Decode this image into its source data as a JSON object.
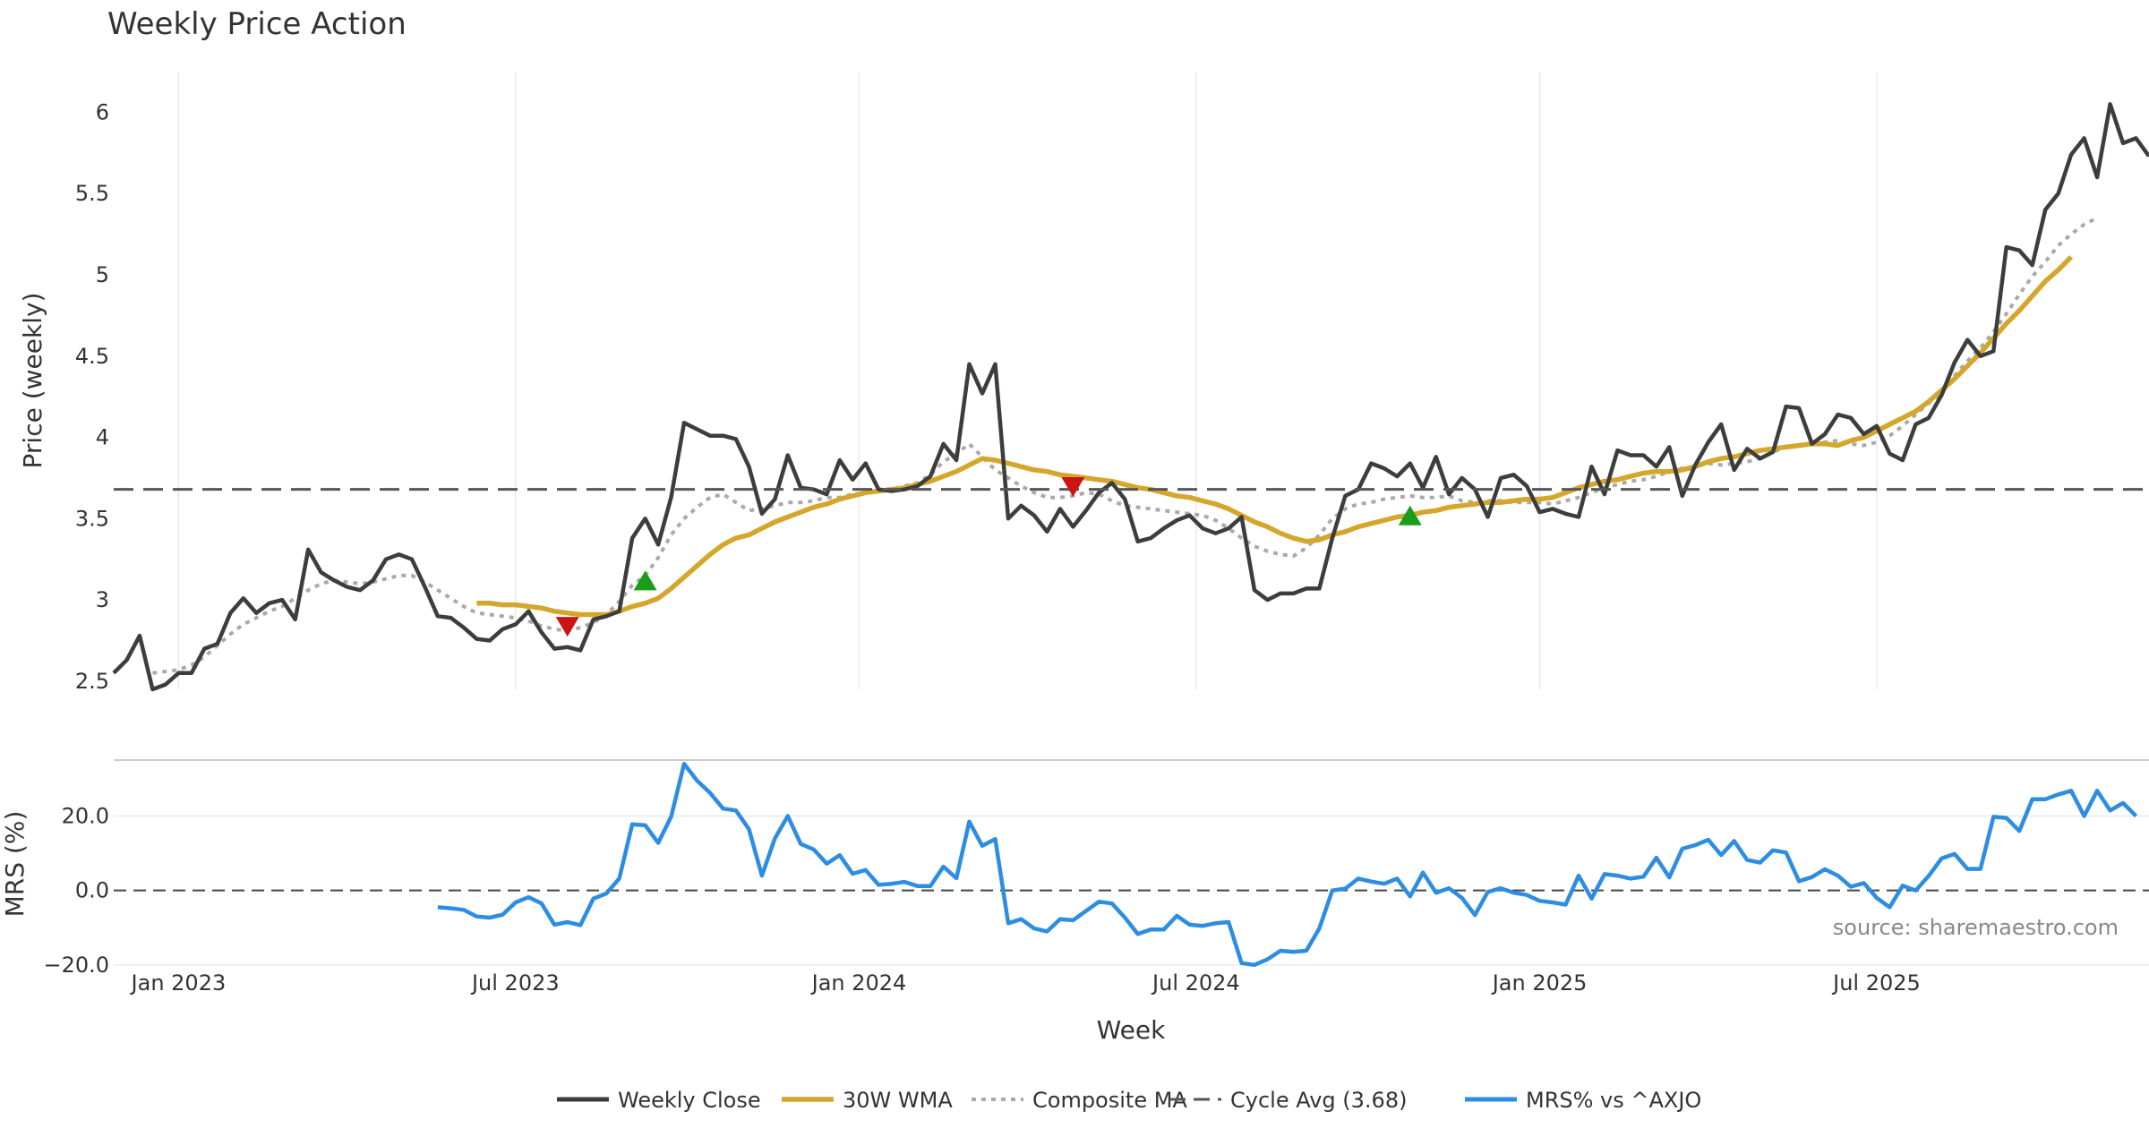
{
  "chart_data": {
    "type": "line",
    "title": "Weekly Price Action",
    "xlabel": "Week",
    "source": "source: sharemaestro.com",
    "colors": {
      "close": "#3d3d3d",
      "wma": "#d4a72c",
      "composite": "#aaaaaa",
      "cycle": "#555555",
      "mrs": "#2d8de3",
      "buy": "#1a9e1a",
      "sell": "#cc1414",
      "grid": "#e9e9e9"
    },
    "x_ticks": [
      {
        "label": "Jan 2023",
        "week": 5
      },
      {
        "label": "Jul 2023",
        "week": 31
      },
      {
        "label": "Jan 2024",
        "week": 57.5
      },
      {
        "label": "Jul 2024",
        "week": 83.5
      },
      {
        "label": "Jan 2025",
        "week": 110
      },
      {
        "label": "Jul 2025",
        "week": 136
      }
    ],
    "price_panel": {
      "ylabel": "Price (weekly)",
      "ylim": [
        2.45,
        6.25
      ],
      "yticks": [
        {
          "value": 2.5,
          "label": "2.5"
        },
        {
          "value": 3,
          "label": "3"
        },
        {
          "value": 3.5,
          "label": "3.5"
        },
        {
          "value": 4,
          "label": "4"
        },
        {
          "value": 4.5,
          "label": "4.5"
        },
        {
          "value": 5,
          "label": "5"
        },
        {
          "value": 5.5,
          "label": "5.5"
        },
        {
          "value": 6,
          "label": "6"
        }
      ],
      "cycle_avg": 3.68,
      "weekly_close": [
        2.55,
        2.63,
        2.78,
        2.45,
        2.48,
        2.55,
        2.55,
        2.7,
        2.73,
        2.92,
        3.01,
        2.92,
        2.98,
        3.0,
        2.88,
        3.31,
        3.17,
        3.12,
        3.08,
        3.06,
        3.12,
        3.25,
        3.28,
        3.25,
        3.08,
        2.9,
        2.89,
        2.83,
        2.76,
        2.75,
        2.82,
        2.85,
        2.93,
        2.8,
        2.7,
        2.71,
        2.69,
        2.88,
        2.9,
        2.93,
        3.38,
        3.5,
        3.34,
        3.63,
        4.09,
        4.05,
        4.01,
        4.01,
        3.99,
        3.82,
        3.53,
        3.62,
        3.89,
        3.69,
        3.68,
        3.65,
        3.86,
        3.74,
        3.84,
        3.68,
        3.67,
        3.68,
        3.7,
        3.76,
        3.96,
        3.86,
        4.45,
        4.27,
        4.45,
        3.5,
        3.58,
        3.52,
        3.42,
        3.56,
        3.45,
        3.55,
        3.66,
        3.72,
        3.62,
        3.36,
        3.38,
        3.44,
        3.49,
        3.52,
        3.44,
        3.41,
        3.44,
        3.51,
        3.06,
        3.0,
        3.04,
        3.04,
        3.07,
        3.07,
        3.38,
        3.64,
        3.68,
        3.84,
        3.81,
        3.76,
        3.84,
        3.69,
        3.88,
        3.65,
        3.75,
        3.68,
        3.51,
        3.75,
        3.77,
        3.7,
        3.54,
        3.56,
        3.53,
        3.51,
        3.82,
        3.65,
        3.92,
        3.89,
        3.89,
        3.82,
        3.94,
        3.64,
        3.83,
        3.97,
        4.08,
        3.8,
        3.93,
        3.87,
        3.91,
        4.19,
        4.18,
        3.96,
        4.02,
        4.14,
        4.12,
        4.02,
        4.07,
        3.9,
        3.86,
        4.08,
        4.12,
        4.26,
        4.46,
        4.6,
        4.5,
        4.53,
        5.17,
        5.15,
        5.06,
        5.4,
        5.5,
        5.74,
        5.84,
        5.6,
        6.05,
        5.81,
        5.84,
        5.73
      ],
      "wma_30": [
        null,
        null,
        null,
        null,
        null,
        null,
        null,
        null,
        null,
        null,
        null,
        null,
        null,
        null,
        null,
        null,
        null,
        null,
        null,
        null,
        null,
        null,
        null,
        null,
        null,
        null,
        null,
        null,
        2.98,
        2.98,
        2.97,
        2.97,
        2.96,
        2.95,
        2.93,
        2.92,
        2.91,
        2.91,
        2.91,
        2.93,
        2.96,
        2.98,
        3.01,
        3.07,
        3.14,
        3.21,
        3.28,
        3.34,
        3.38,
        3.4,
        3.44,
        3.48,
        3.51,
        3.54,
        3.57,
        3.59,
        3.62,
        3.64,
        3.66,
        3.67,
        3.68,
        3.69,
        3.71,
        3.73,
        3.76,
        3.79,
        3.83,
        3.87,
        3.86,
        3.84,
        3.82,
        3.8,
        3.79,
        3.77,
        3.76,
        3.75,
        3.74,
        3.73,
        3.71,
        3.69,
        3.68,
        3.66,
        3.64,
        3.63,
        3.61,
        3.59,
        3.56,
        3.52,
        3.48,
        3.45,
        3.41,
        3.38,
        3.36,
        3.37,
        3.4,
        3.42,
        3.45,
        3.47,
        3.49,
        3.51,
        3.52,
        3.54,
        3.55,
        3.57,
        3.58,
        3.59,
        3.6,
        3.6,
        3.61,
        3.62,
        3.62,
        3.63,
        3.66,
        3.69,
        3.71,
        3.73,
        3.74,
        3.76,
        3.78,
        3.79,
        3.79,
        3.8,
        3.82,
        3.85,
        3.87,
        3.88,
        3.9,
        3.92,
        3.93,
        3.94,
        3.95,
        3.96,
        3.96,
        3.95,
        3.98,
        4.0,
        4.04,
        4.08,
        4.12,
        4.16,
        4.22,
        4.29,
        4.36,
        4.44,
        4.52,
        4.61,
        4.7,
        4.78,
        4.87,
        4.96,
        5.03,
        5.11
      ],
      "composite_ma": [
        null,
        null,
        null,
        2.55,
        2.56,
        2.57,
        2.6,
        2.65,
        2.72,
        2.79,
        2.85,
        2.89,
        2.93,
        2.96,
        3.01,
        3.06,
        3.1,
        3.12,
        3.11,
        3.1,
        3.11,
        3.13,
        3.15,
        3.15,
        3.11,
        3.06,
        3.01,
        2.96,
        2.92,
        2.91,
        2.9,
        2.89,
        2.87,
        2.84,
        2.82,
        2.81,
        2.83,
        2.86,
        2.91,
        2.99,
        3.09,
        3.15,
        3.26,
        3.4,
        3.5,
        3.57,
        3.63,
        3.65,
        3.6,
        3.55,
        3.56,
        3.58,
        3.6,
        3.6,
        3.61,
        3.63,
        3.63,
        3.65,
        3.66,
        3.67,
        3.68,
        3.7,
        3.72,
        3.77,
        3.85,
        3.9,
        3.96,
        3.88,
        3.8,
        3.75,
        3.7,
        3.66,
        3.63,
        3.63,
        3.64,
        3.66,
        3.65,
        3.61,
        3.58,
        3.57,
        3.56,
        3.55,
        3.54,
        3.53,
        3.52,
        3.49,
        3.44,
        3.38,
        3.33,
        3.3,
        3.28,
        3.27,
        3.32,
        3.4,
        3.5,
        3.56,
        3.59,
        3.6,
        3.62,
        3.63,
        3.64,
        3.63,
        3.63,
        3.64,
        3.61,
        3.6,
        3.61,
        3.61,
        3.6,
        3.6,
        3.6,
        3.59,
        3.61,
        3.63,
        3.66,
        3.69,
        3.71,
        3.73,
        3.74,
        3.76,
        3.79,
        3.81,
        3.82,
        3.84,
        3.83,
        3.84,
        3.85,
        3.87,
        3.91,
        3.94,
        3.95,
        3.96,
        3.97,
        3.98,
        3.96,
        3.95,
        3.97,
        4.01,
        4.07,
        4.14,
        4.21,
        4.27,
        4.38,
        4.47,
        4.55,
        4.65,
        4.76,
        4.88,
        4.99,
        5.08,
        5.18,
        5.25,
        5.31,
        5.35
      ],
      "buy_signals": [
        {
          "week": 41,
          "value": 3.12
        },
        {
          "week": 100,
          "value": 3.52
        }
      ],
      "sell_signals": [
        {
          "week": 35,
          "value": 2.84
        },
        {
          "week": 74,
          "value": 3.7
        }
      ]
    },
    "mrs_panel": {
      "ylabel": "MRS (%)",
      "ylim": [
        -21,
        36
      ],
      "yticks": [
        {
          "value": 20,
          "label": "20.0"
        },
        {
          "value": 0,
          "label": "0.0"
        },
        {
          "value": -20,
          "label": "−20.0"
        }
      ],
      "mrs_start_week": 25,
      "mrs_values": [
        -4.5,
        -4.8,
        -5.2,
        -7.0,
        -7.3,
        -6.5,
        -3.2,
        -1.8,
        -3.5,
        -9.2,
        -8.5,
        -9.3,
        -2.2,
        -0.8,
        3.2,
        17.8,
        17.5,
        12.8,
        19.8,
        34.0,
        29.5,
        26.2,
        22.0,
        21.5,
        16.5,
        4.0,
        14.0,
        20.0,
        12.5,
        11.0,
        7.2,
        9.5,
        4.5,
        5.5,
        1.5,
        1.8,
        2.3,
        1.2,
        1.2,
        6.4,
        3.3,
        18.5,
        12.0,
        13.8,
        -8.8,
        -7.7,
        -10.2,
        -11.0,
        -7.7,
        -8.0,
        -5.5,
        -3.0,
        -3.5,
        -7.3,
        -11.7,
        -10.5,
        -10.5,
        -6.8,
        -9.2,
        -9.5,
        -8.8,
        -8.5,
        -19.5,
        -20.0,
        -18.5,
        -16.2,
        -16.5,
        -16.2,
        -10.2,
        0.0,
        0.5,
        3.2,
        2.4,
        1.8,
        3.2,
        -1.6,
        4.8,
        -0.6,
        0.6,
        -2.0,
        -6.6,
        -0.4,
        0.6,
        -0.6,
        -1.2,
        -2.8,
        -3.2,
        -3.8,
        4.0,
        -2.2,
        4.4,
        4.0,
        3.2,
        3.7,
        8.8,
        3.5,
        11.2,
        12.2,
        13.6,
        9.5,
        13.3,
        8.2,
        7.5,
        10.8,
        10.2,
        2.5,
        3.6,
        5.7,
        4.0,
        1.0,
        2.0,
        -2.0,
        -4.5,
        1.3,
        0.0,
        3.9,
        8.6,
        9.8,
        5.8,
        5.8,
        19.8,
        19.5,
        16.0,
        24.5,
        24.5,
        25.8,
        26.8,
        20.0,
        26.8,
        21.5,
        23.5,
        20.0
      ]
    },
    "legend": [
      {
        "key": "close",
        "label": "Weekly Close"
      },
      {
        "key": "wma",
        "label": "30W WMA"
      },
      {
        "key": "composite",
        "label": "Composite MA"
      },
      {
        "key": "cycle",
        "label": "Cycle Avg (3.68)"
      },
      {
        "key": "mrs",
        "label": "MRS% vs ^AXJO"
      }
    ]
  }
}
